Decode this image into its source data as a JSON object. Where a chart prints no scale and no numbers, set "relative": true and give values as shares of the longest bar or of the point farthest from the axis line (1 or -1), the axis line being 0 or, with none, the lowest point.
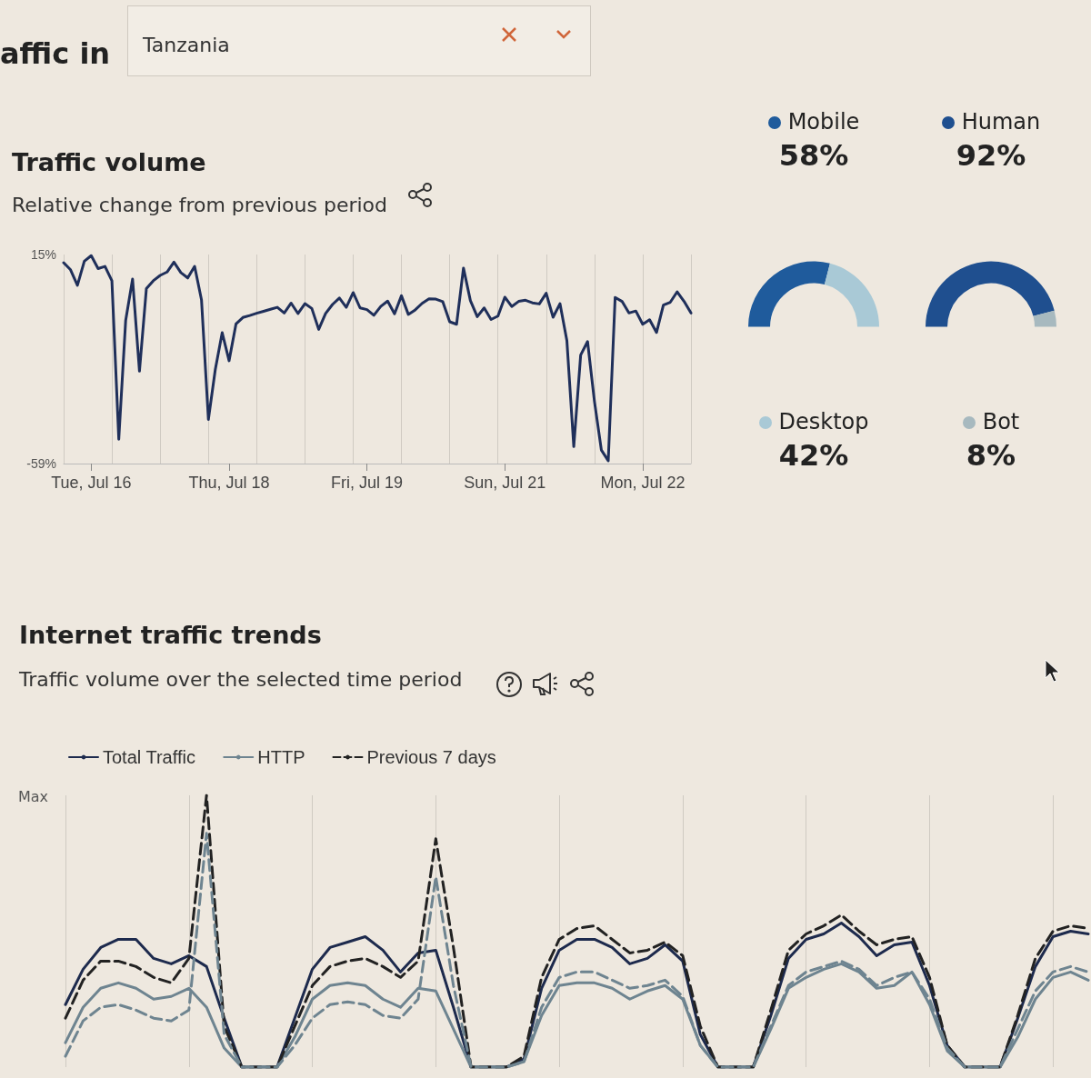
{
  "chart_data": [
    {
      "type": "other",
      "title": "affic in",
      "annotations": [
        "Tanzania"
      ]
    },
    {
      "type": "line",
      "title": "Traffic volume",
      "subtitle": "Relative change from previous period",
      "marker": "none",
      "grid": "x",
      "categories": [
        null,
        null,
        null,
        null,
        "Tue, Jul 16",
        null,
        null,
        null,
        null,
        null,
        null,
        null,
        null,
        null,
        null,
        null,
        null,
        null,
        null,
        null,
        null,
        null,
        null,
        null,
        "Thu, Jul 18",
        null,
        null,
        null,
        null,
        null,
        null,
        null,
        null,
        null,
        null,
        null,
        null,
        null,
        null,
        null,
        null,
        null,
        null,
        null,
        "Fri, Jul 19",
        null,
        null,
        null,
        null,
        null,
        null,
        null,
        null,
        null,
        null,
        null,
        null,
        null,
        null,
        null,
        null,
        null,
        null,
        null,
        "Sun, Jul 21",
        null,
        null,
        null,
        null,
        null,
        null,
        null,
        null,
        null,
        null,
        null,
        null,
        null,
        null,
        null,
        null,
        null,
        null,
        null,
        "Mon, Jul 22",
        null,
        null,
        null,
        null,
        null,
        null,
        null
      ],
      "ylim": [
        -59,
        15
      ],
      "yticks": [
        {
          "value": 15,
          "label": "15%"
        },
        {
          "value": -59,
          "label": "-59%"
        }
      ],
      "series": [
        {
          "color": "#1f2f5a",
          "values": [
            12.1,
            9.6,
            4.1,
            12.6,
            14.6,
            10.0,
            10.8,
            5.7,
            -50.4,
            -8.3,
            6.3,
            -26.3,
            2.9,
            5.7,
            7.6,
            8.8,
            12.3,
            8.6,
            6.7,
            10.8,
            -1.1,
            -43.4,
            -25.7,
            -12.7,
            -22.6,
            -9.6,
            -7.3,
            -6.6,
            -5.8,
            -5.1,
            -4.4,
            -3.7,
            -5.7,
            -2.2,
            -5.9,
            -2.4,
            -4.1,
            -11.5,
            -5.9,
            -2.7,
            -0.4,
            -3.7,
            1.5,
            -3.9,
            -4.5,
            -6.5,
            -3.4,
            -1.5,
            -6.0,
            0.4,
            -6.2,
            -4.6,
            -2.3,
            -0.7,
            -0.8,
            -1.7,
            -8.8,
            -9.7,
            10.2,
            -1.3,
            -7.0,
            -3.9,
            -8.0,
            -6.8,
            -0.1,
            -3.4,
            -1.6,
            -1.2,
            -2.1,
            -2.5,
            1.3,
            -7.2,
            -2.4,
            -15.5,
            -53.0,
            -20.6,
            -15.8,
            -37.0,
            -54.2,
            -58.0,
            -0.2,
            -1.6,
            -5.7,
            -5.0,
            -9.7,
            -8.1,
            -12.6,
            -2.9,
            -1.9,
            1.8,
            -1.6,
            -5.7
          ]
        }
      ]
    },
    {
      "type": "donut",
      "legend": "top",
      "categories": [
        "Mobile",
        "Desktop"
      ],
      "values": [
        58,
        42
      ],
      "value_labels": [
        "58%",
        "42%"
      ],
      "colors": [
        "#1f5b9c",
        "#a9c9d6"
      ]
    },
    {
      "type": "donut",
      "legend": "top",
      "categories": [
        "Human",
        "Bot"
      ],
      "values": [
        92,
        8
      ],
      "value_labels": [
        "92%",
        "8%"
      ],
      "colors": [
        "#1f4f8f",
        "#a7b9bf"
      ]
    },
    {
      "type": "line",
      "title": "Internet traffic trends",
      "subtitle": "Traffic volume over the selected time period",
      "relative": true,
      "marker": "none",
      "grid": "x",
      "legend": "top left",
      "annotations": [
        "Max"
      ],
      "categories": [
        null,
        null,
        null,
        null,
        null,
        null,
        null,
        null,
        null,
        null,
        null,
        null,
        null,
        null,
        null,
        null,
        null,
        null,
        null,
        null,
        null,
        null,
        null,
        null,
        null,
        null,
        null,
        null,
        null,
        null,
        null,
        null,
        null,
        null,
        null,
        null,
        null,
        null,
        null,
        null,
        null,
        null,
        null,
        null,
        null,
        null,
        null,
        null,
        null,
        null,
        null,
        null,
        null,
        null,
        null,
        null,
        null,
        null,
        null
      ],
      "series": [
        {
          "name": "Total Traffic",
          "color": "#1d2a4d",
          "line_style": "solid",
          "values": [
            0.23,
            0.36,
            0.44,
            0.47,
            0.47,
            0.4,
            0.38,
            0.41,
            0.37,
            0.18,
            0,
            0,
            0,
            0.18,
            0.36,
            0.44,
            0.46,
            0.48,
            0.43,
            0.35,
            0.42,
            0.43,
            0.22,
            0,
            0,
            0,
            0.03,
            0.29,
            0.43,
            0.47,
            0.47,
            0.44,
            0.38,
            0.4,
            0.45,
            0.39,
            0.12,
            0,
            0,
            0,
            0.19,
            0.4,
            0.47,
            0.49,
            0.53,
            0.48,
            0.41,
            0.45,
            0.46,
            0.3,
            0.08,
            0,
            0,
            0,
            0.18,
            0.37,
            0.48,
            0.5,
            0.49
          ]
        },
        {
          "name": "HTTP",
          "color": "#6e8490",
          "line_style": "solid",
          "values": [
            0.09,
            0.22,
            0.29,
            0.31,
            0.29,
            0.25,
            0.26,
            0.29,
            0.22,
            0.07,
            0,
            0,
            0,
            0.11,
            0.25,
            0.3,
            0.31,
            0.3,
            0.25,
            0.22,
            0.29,
            0.28,
            0.14,
            0,
            0,
            0,
            0.02,
            0.19,
            0.3,
            0.31,
            0.31,
            0.29,
            0.25,
            0.28,
            0.3,
            0.25,
            0.08,
            0,
            0,
            0,
            0.14,
            0.29,
            0.33,
            0.36,
            0.38,
            0.35,
            0.29,
            0.3,
            0.35,
            0.23,
            0.06,
            0,
            0,
            0,
            0.11,
            0.25,
            0.33,
            0.35,
            0.32
          ]
        },
        {
          "name": "Previous 7 days",
          "color": "#222222",
          "line_style": "dashed",
          "values": [
            0.18,
            0.32,
            0.39,
            0.39,
            0.37,
            0.33,
            0.31,
            0.4,
            1.0,
            0.15,
            0,
            0,
            0,
            0.15,
            0.3,
            0.37,
            0.39,
            0.4,
            0.37,
            0.33,
            0.39,
            0.84,
            0.44,
            0,
            0,
            0,
            0.04,
            0.33,
            0.47,
            0.51,
            0.52,
            0.47,
            0.42,
            0.43,
            0.46,
            0.41,
            0.15,
            0,
            0,
            0,
            0.21,
            0.43,
            0.49,
            0.52,
            0.56,
            0.5,
            0.45,
            0.47,
            0.48,
            0.33,
            0.08,
            0,
            0,
            0,
            0.19,
            0.4,
            0.5,
            0.52,
            0.51
          ]
        },
        {
          "color": "#6e8490",
          "line_style": "dashed",
          "values": [
            0.04,
            0.17,
            0.22,
            0.23,
            0.21,
            0.18,
            0.17,
            0.21,
            0.86,
            0.12,
            0,
            0,
            0,
            0.08,
            0.18,
            0.23,
            0.24,
            0.23,
            0.19,
            0.18,
            0.25,
            0.7,
            0.3,
            0,
            0,
            0,
            0.02,
            0.22,
            0.33,
            0.35,
            0.35,
            0.32,
            0.29,
            0.3,
            0.32,
            0.26,
            0.08,
            0,
            0,
            0,
            0.15,
            0.3,
            0.35,
            0.37,
            0.39,
            0.36,
            0.3,
            0.33,
            0.35,
            0.25,
            0.07,
            0,
            0,
            0,
            0.14,
            0.28,
            0.35,
            0.37,
            0.35
          ]
        }
      ]
    }
  ]
}
